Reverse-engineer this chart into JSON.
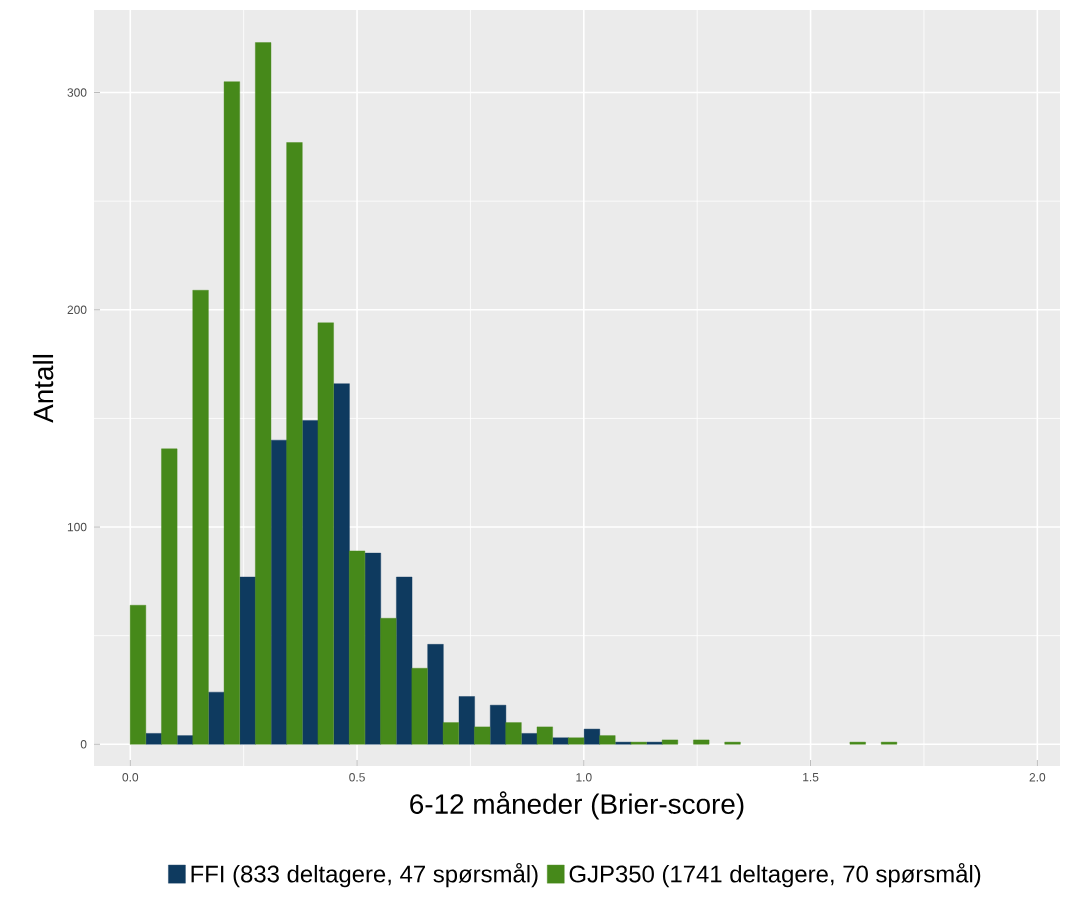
{
  "chart_data": {
    "type": "bar",
    "xlabel": "6-12 måneder (Brier-score)",
    "ylabel": "Antall",
    "xlim": [
      -0.08,
      2.05
    ],
    "xticks": [
      {
        "value": 0,
        "label": "0.0"
      },
      {
        "value": 0.5,
        "label": "0.5"
      },
      {
        "value": 1,
        "label": "1.0"
      },
      {
        "value": 1.5,
        "label": "1.5"
      },
      {
        "value": 2,
        "label": "2.0"
      }
    ],
    "ylim": [
      -10,
      338
    ],
    "yticks": [
      0,
      100,
      200,
      300
    ],
    "grid": true,
    "legend": "bottom",
    "series": [
      {
        "name": "FFI (833 deltagere, 47 spørsmål)",
        "color": "#0e3a5f",
        "x": [
          0.052,
          0.121,
          0.19,
          0.259,
          0.328,
          0.397,
          0.466,
          0.535,
          0.604,
          0.673,
          0.742,
          0.811,
          0.88,
          0.949,
          1.018,
          1.087,
          1.156
        ],
        "values": [
          5,
          4,
          24,
          77,
          140,
          149,
          166,
          88,
          77,
          46,
          22,
          18,
          5,
          3,
          7,
          1,
          1
        ]
      },
      {
        "name": "GJP350 (1741 deltagere, 70 spørsmål)",
        "color": "#46891a",
        "x": [
          0.017,
          0.086,
          0.155,
          0.224,
          0.293,
          0.362,
          0.431,
          0.5,
          0.569,
          0.638,
          0.707,
          0.776,
          0.845,
          0.914,
          0.983,
          1.052,
          1.121,
          1.19,
          1.259,
          1.328,
          1.604,
          1.673
        ],
        "values": [
          64,
          136,
          209,
          305,
          323,
          277,
          194,
          89,
          58,
          35,
          10,
          8,
          10,
          8,
          3,
          4,
          1,
          2,
          2,
          1,
          1,
          1
        ]
      }
    ]
  }
}
